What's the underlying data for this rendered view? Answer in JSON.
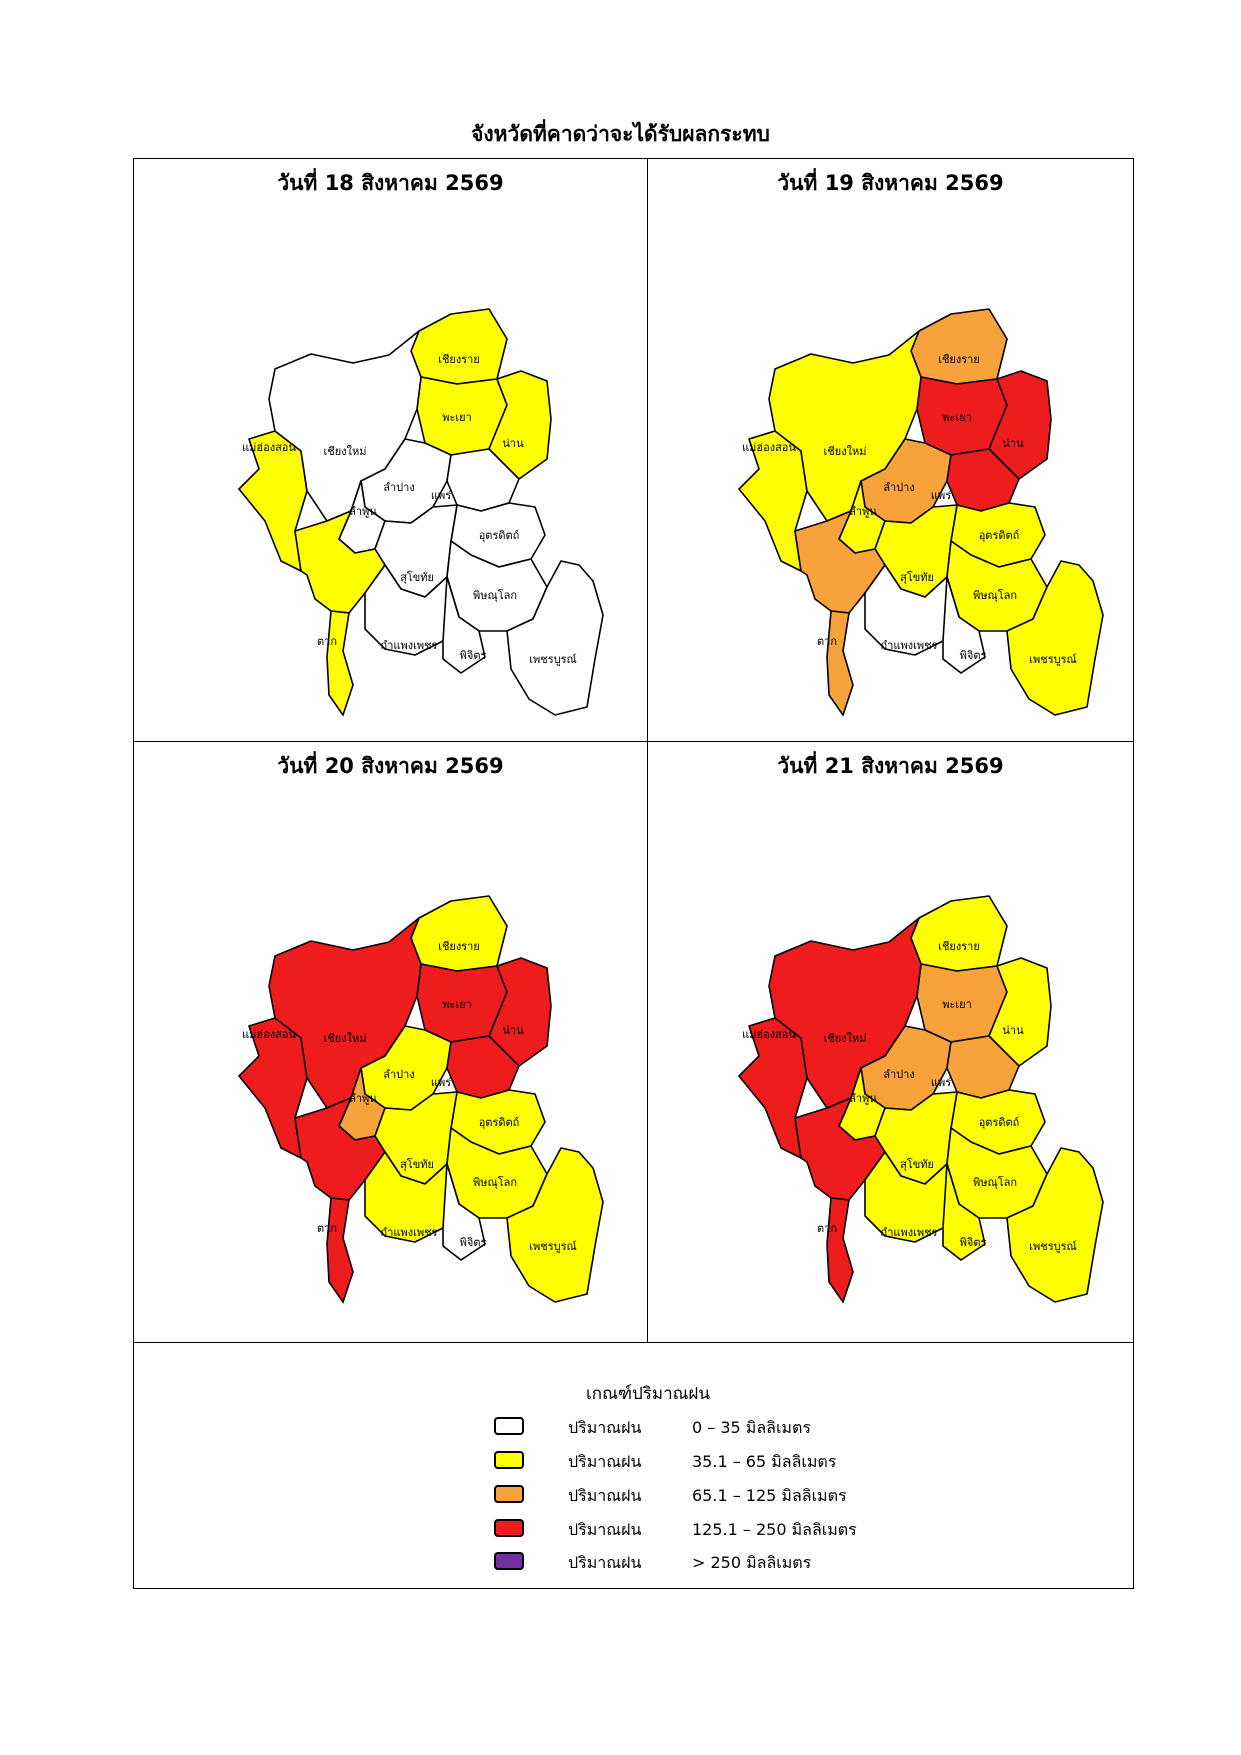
{
  "title": "จังหวัดที่คาดว่าจะได้รับผลกระทบ",
  "colors": {
    "none": "#ffffff",
    "light": "#ffff00",
    "moderate": "#f7a23a",
    "heavy": "#ee1c1c",
    "extreme": "#7030a0",
    "border": "#000000"
  },
  "province_labels": [
    "เชียงราย",
    "พะเยา",
    "น่าน",
    "แม่ฮ่องสอน",
    "เชียงใหม่",
    "ลำปาง",
    "แพร่",
    "ลำพูน",
    "อุตรดิตถ์",
    "สุโขทัย",
    "พิษณุโลก",
    "ตาก",
    "กำแพงเพชร",
    "พิจิตร",
    "เพชรบูรณ์"
  ],
  "panels": [
    {
      "date": "วันที่ 18 สิงหาคม 2569",
      "levels": {
        "เชียงราย": "light",
        "พะเยา": "light",
        "น่าน": "light",
        "แม่ฮ่องสอน": "light",
        "เชียงใหม่": "none",
        "ลำปาง": "none",
        "แพร่": "none",
        "ลำพูน": "none",
        "อุตรดิตถ์": "none",
        "สุโขทัย": "none",
        "พิษณุโลก": "none",
        "ตาก": "light",
        "กำแพงเพชร": "none",
        "พิจิตร": "none",
        "เพชรบูรณ์": "none"
      }
    },
    {
      "date": "วันที่ 19 สิงหาคม 2569",
      "levels": {
        "เชียงราย": "moderate",
        "พะเยา": "heavy",
        "น่าน": "heavy",
        "แม่ฮ่องสอน": "light",
        "เชียงใหม่": "light",
        "ลำปาง": "moderate",
        "แพร่": "heavy",
        "ลำพูน": "light",
        "อุตรดิตถ์": "light",
        "สุโขทัย": "light",
        "พิษณุโลก": "light",
        "ตาก": "moderate",
        "กำแพงเพชร": "none",
        "พิจิตร": "none",
        "เพชรบูรณ์": "light"
      }
    },
    {
      "date": "วันที่ 20 สิงหาคม 2569",
      "levels": {
        "เชียงราย": "light",
        "พะเยา": "heavy",
        "น่าน": "heavy",
        "แม่ฮ่องสอน": "heavy",
        "เชียงใหม่": "heavy",
        "ลำปาง": "light",
        "แพร่": "heavy",
        "ลำพูน": "moderate",
        "อุตรดิตถ์": "light",
        "สุโขทัย": "light",
        "พิษณุโลก": "light",
        "ตาก": "heavy",
        "กำแพงเพชร": "light",
        "พิจิตร": "none",
        "เพชรบูรณ์": "light"
      }
    },
    {
      "date": "วันที่ 21 สิงหาคม 2569",
      "levels": {
        "เชียงราย": "light",
        "พะเยา": "moderate",
        "น่าน": "light",
        "แม่ฮ่องสอน": "heavy",
        "เชียงใหม่": "heavy",
        "ลำปาง": "moderate",
        "แพร่": "moderate",
        "ลำพูน": "light",
        "อุตรดิตถ์": "light",
        "สุโขทัย": "light",
        "พิษณุโลก": "light",
        "ตาก": "heavy",
        "กำแพงเพชร": "light",
        "พิจิตร": "light",
        "เพชรบูรณ์": "light"
      }
    }
  ],
  "legend": {
    "title": "เกณฑ์ปริมาณฝน",
    "items": [
      {
        "label": "ปริมาณฝน",
        "range": "0 – 35 มิลลิเมตร",
        "color": "#ffffff"
      },
      {
        "label": "ปริมาณฝน",
        "range": "35.1 – 65 มิลลิเมตร",
        "color": "#ffff00"
      },
      {
        "label": "ปริมาณฝน",
        "range": "65.1 – 125 มิลลิเมตร",
        "color": "#f7a23a"
      },
      {
        "label": "ปริมาณฝน",
        "range": "125.1 – 250 มิลลิเมตร",
        "color": "#ee1c1c"
      },
      {
        "label": "ปริมาณฝน",
        "range": "> 250 มิลลิเมตร",
        "color": "#7030a0"
      }
    ]
  }
}
